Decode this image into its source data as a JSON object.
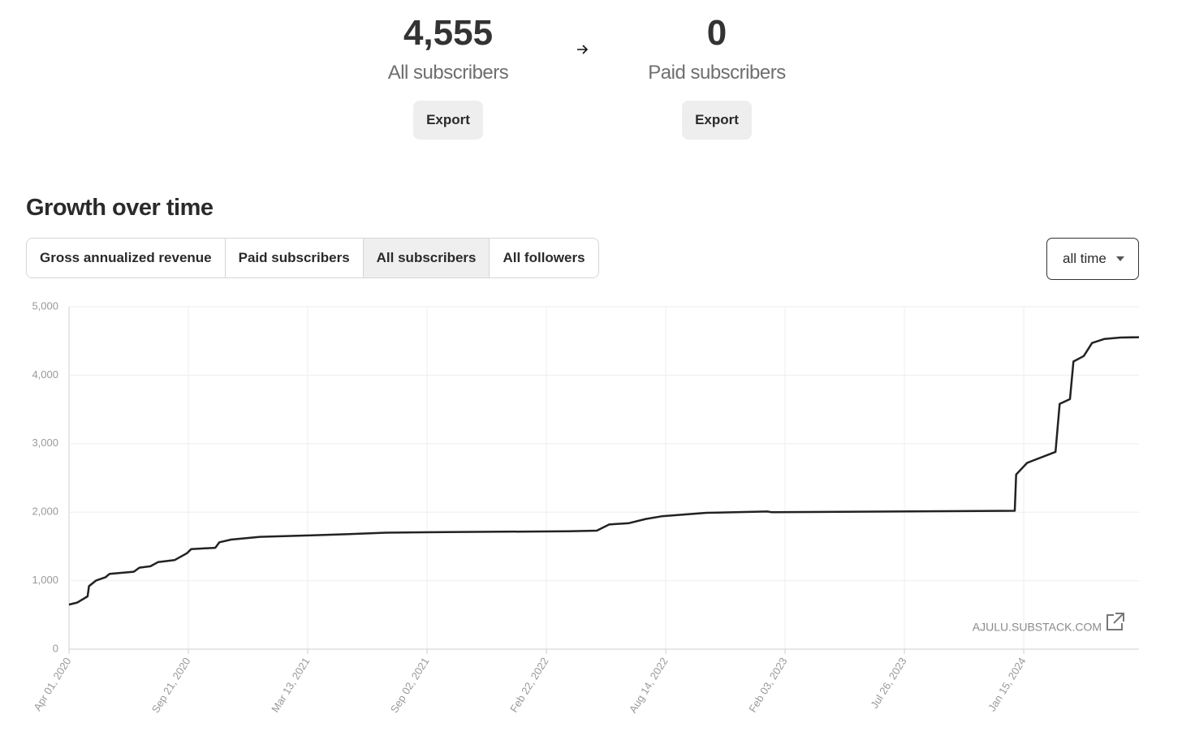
{
  "stats": [
    {
      "value": "4,555",
      "label": "All subscribers",
      "button": "Export"
    },
    {
      "value": "0",
      "label": "Paid subscribers",
      "button": "Export"
    }
  ],
  "section_title": "Growth over time",
  "tabs": [
    "Gross annualized revenue",
    "Paid subscribers",
    "All subscribers",
    "All followers"
  ],
  "range_select": "all time",
  "watermark": "AJULU.SUBSTACK.COM",
  "chart_data": {
    "type": "line",
    "color": "#222222",
    "grid": true,
    "x": [
      "2020-04-01",
      "2020-04-13",
      "2020-04-28",
      "2020-04-30",
      "2020-05-10",
      "2020-05-24",
      "2020-05-30",
      "2020-07-04",
      "2020-07-12",
      "2020-07-28",
      "2020-08-08",
      "2020-09-01",
      "2020-09-19",
      "2020-09-25",
      "2020-10-30",
      "2020-11-05",
      "2020-11-22",
      "2021-01-03",
      "2021-03-14",
      "2021-05-12",
      "2021-07-04",
      "2021-09-30",
      "2022-03-26",
      "2022-05-06",
      "2022-05-24",
      "2022-06-22",
      "2022-07-16",
      "2022-08-08",
      "2022-10-12",
      "2023-01-08",
      "2023-01-14",
      "2024-01-02",
      "2024-01-04",
      "2024-01-20",
      "2024-03-01",
      "2024-03-07",
      "2024-03-22",
      "2024-03-27",
      "2024-04-11",
      "2024-04-23",
      "2024-05-11",
      "2024-06-03",
      "2024-06-30"
    ],
    "values": [
      650,
      680,
      770,
      920,
      1000,
      1050,
      1100,
      1130,
      1190,
      1210,
      1270,
      1300,
      1400,
      1460,
      1480,
      1560,
      1600,
      1640,
      1660,
      1680,
      1700,
      1710,
      1720,
      1730,
      1820,
      1840,
      1900,
      1940,
      1990,
      2010,
      2000,
      2020,
      2550,
      2720,
      2880,
      3580,
      3650,
      4200,
      4280,
      4470,
      4530,
      4550,
      4555
    ],
    "xlim": [
      "2020-04-01",
      "2024-06-30"
    ],
    "xticks": [
      {
        "value": "2020-04-01",
        "label": "Apr 01, 2020"
      },
      {
        "value": "2020-09-21",
        "label": "Sep 21, 2020"
      },
      {
        "value": "2021-03-13",
        "label": "Mar 13, 2021"
      },
      {
        "value": "2021-09-02",
        "label": "Sep 02, 2021"
      },
      {
        "value": "2022-02-22",
        "label": "Feb 22, 2022"
      },
      {
        "value": "2022-08-14",
        "label": "Aug 14, 2022"
      },
      {
        "value": "2023-02-03",
        "label": "Feb 03, 2023"
      },
      {
        "value": "2023-07-26",
        "label": "Jul 26, 2023"
      },
      {
        "value": "2024-01-15",
        "label": "Jan 15, 2024"
      }
    ],
    "ylim": [
      0,
      5000
    ],
    "yticks": [
      0,
      {
        "value": 1000,
        "label": "1,000"
      },
      {
        "value": 2000,
        "label": "2,000"
      },
      {
        "value": 3000,
        "label": "3,000"
      },
      {
        "value": 4000,
        "label": "4,000"
      },
      {
        "value": 5000,
        "label": "5,000"
      }
    ]
  }
}
